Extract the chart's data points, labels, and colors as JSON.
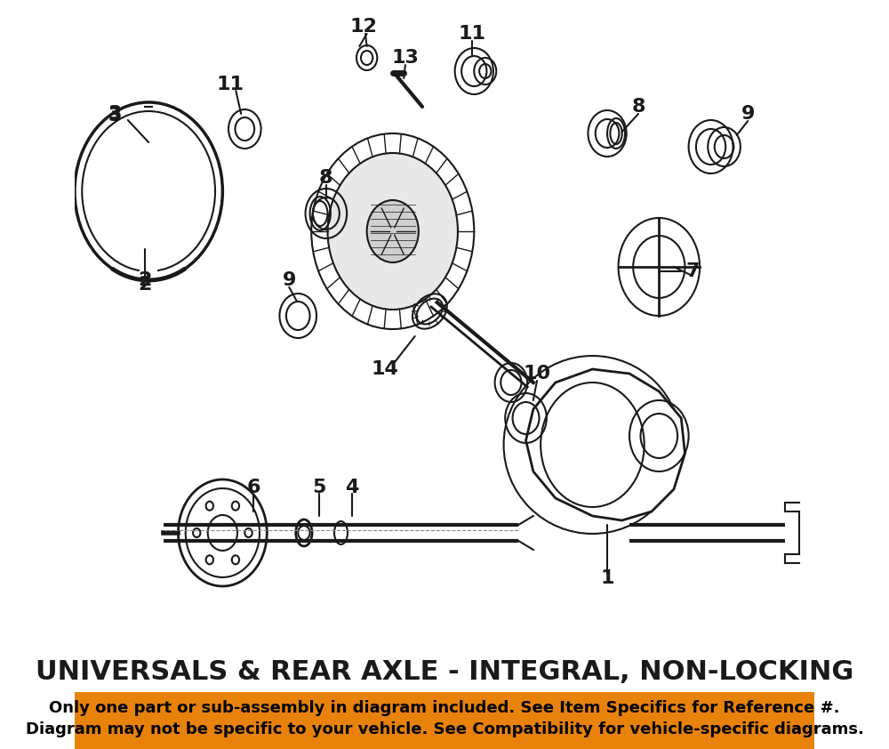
{
  "title": "UNIVERSALS & REAR AXLE - INTEGRAL, NON-LOCKING",
  "disclaimer_line1": "Only one part or sub-assembly in diagram included. See Item Specifics for Reference #.",
  "disclaimer_line2": "Diagram may not be specific to your vehicle. See Compatibility for vehicle-specific diagrams.",
  "bg_color": "#ffffff",
  "title_color": "#1a1a1a",
  "orange_color": "#e8820a",
  "text_color": "#000000",
  "diagram_color": "#1a1a1a",
  "title_fontsize": 22,
  "disclaimer_fontsize": 13,
  "part_label_fontsize": 16,
  "figsize": [
    10.0,
    8.42
  ]
}
